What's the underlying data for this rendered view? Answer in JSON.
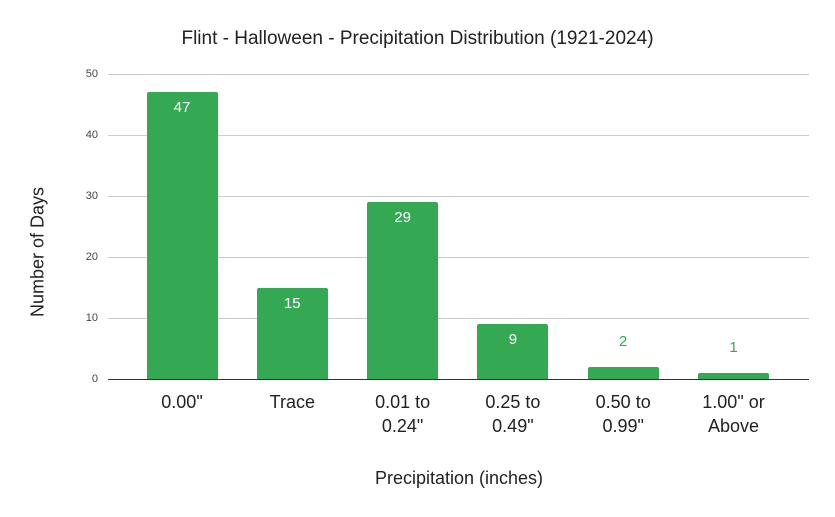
{
  "chart_data": {
    "type": "bar",
    "title": "Flint - Halloween - Precipitation Distribution (1921-2024)",
    "xlabel": "Precipitation (inches)",
    "ylabel": "Number of Days",
    "categories": [
      "0.00\"",
      "Trace",
      "0.01 to 0.24\"",
      "0.25 to 0.49\"",
      "0.50 to 0.99\"",
      "1.00\" or Above"
    ],
    "category_lines": [
      [
        "0.00\""
      ],
      [
        "Trace"
      ],
      [
        "0.01 to",
        "0.24\""
      ],
      [
        "0.25 to",
        "0.49\""
      ],
      [
        "0.50 to",
        "0.99\""
      ],
      [
        "1.00\" or",
        "Above"
      ]
    ],
    "values": [
      47,
      15,
      29,
      9,
      2,
      1
    ],
    "ylim": [
      0,
      50
    ],
    "yticks": [
      0,
      10,
      20,
      30,
      40,
      50
    ],
    "grid": true,
    "legend": "none",
    "bar_color": "#34a853",
    "data_labels": true
  }
}
